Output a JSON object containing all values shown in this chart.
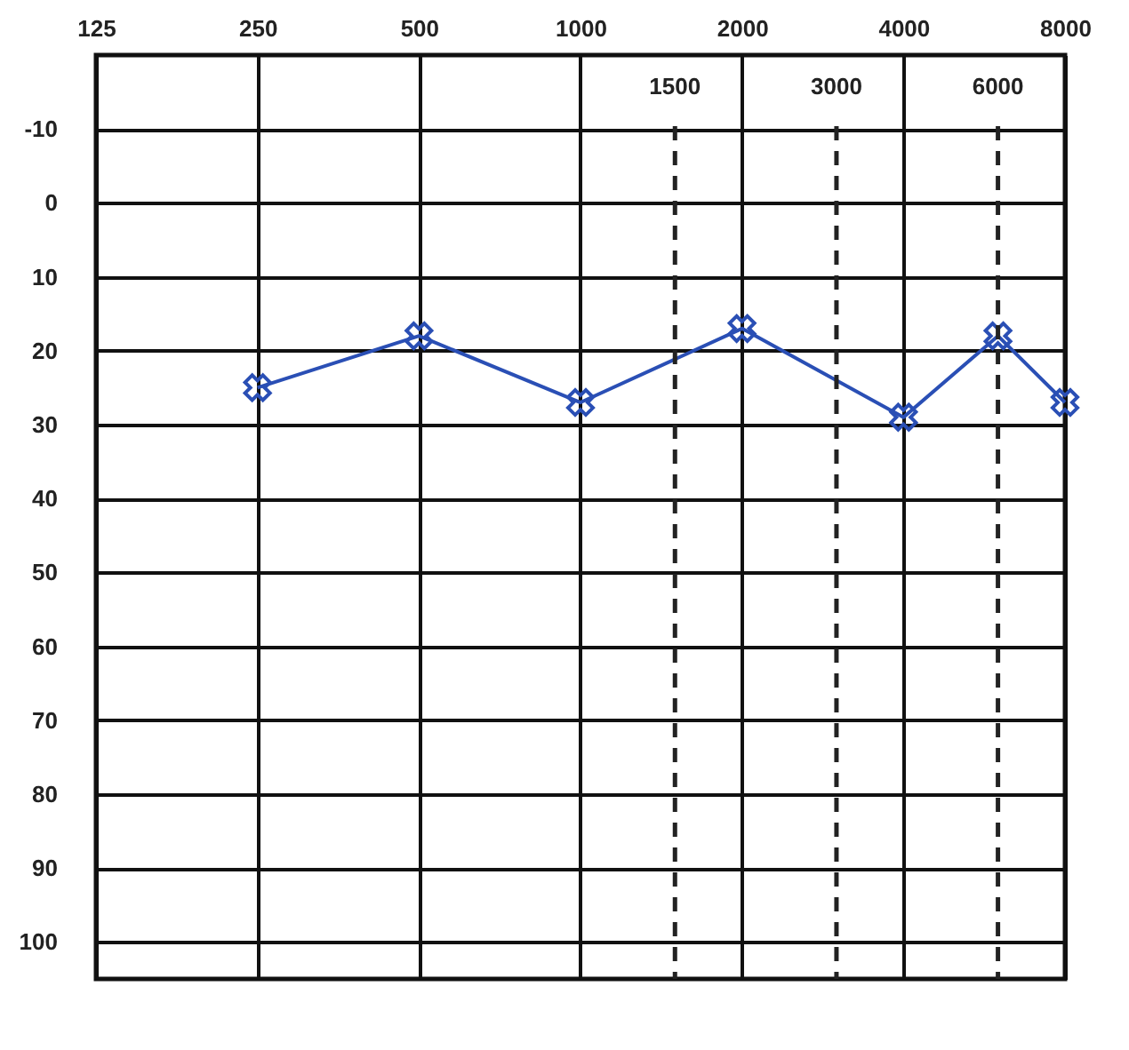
{
  "chart_data": {
    "type": "line",
    "x": [
      250,
      500,
      1000,
      2000,
      4000,
      6000,
      8000
    ],
    "series": [
      {
        "color": "#2a4fb5",
        "values": [
          25,
          18,
          27,
          17,
          29,
          18,
          27
        ]
      }
    ],
    "log": "x",
    "xlim": [
      125,
      8000
    ],
    "xticks": [
      125,
      250,
      500,
      1000,
      2000,
      4000,
      8000
    ],
    "ylim": [
      105,
      -20
    ],
    "yticks": [
      -10,
      0,
      10,
      20,
      30,
      40,
      50,
      60,
      70,
      80,
      90,
      100
    ],
    "grid": true,
    "marker": "cross",
    "line_style": "solid",
    "ref_lines": [
      {
        "axis": "x",
        "value": 1500,
        "label": "1500",
        "line_style": "dashed",
        "color": "#222222"
      },
      {
        "axis": "x",
        "value": 3000,
        "label": "3000",
        "line_style": "dashed",
        "color": "#222222"
      },
      {
        "axis": "x",
        "value": 6000,
        "label": "6000",
        "line_style": "dashed",
        "color": "#222222"
      }
    ]
  }
}
